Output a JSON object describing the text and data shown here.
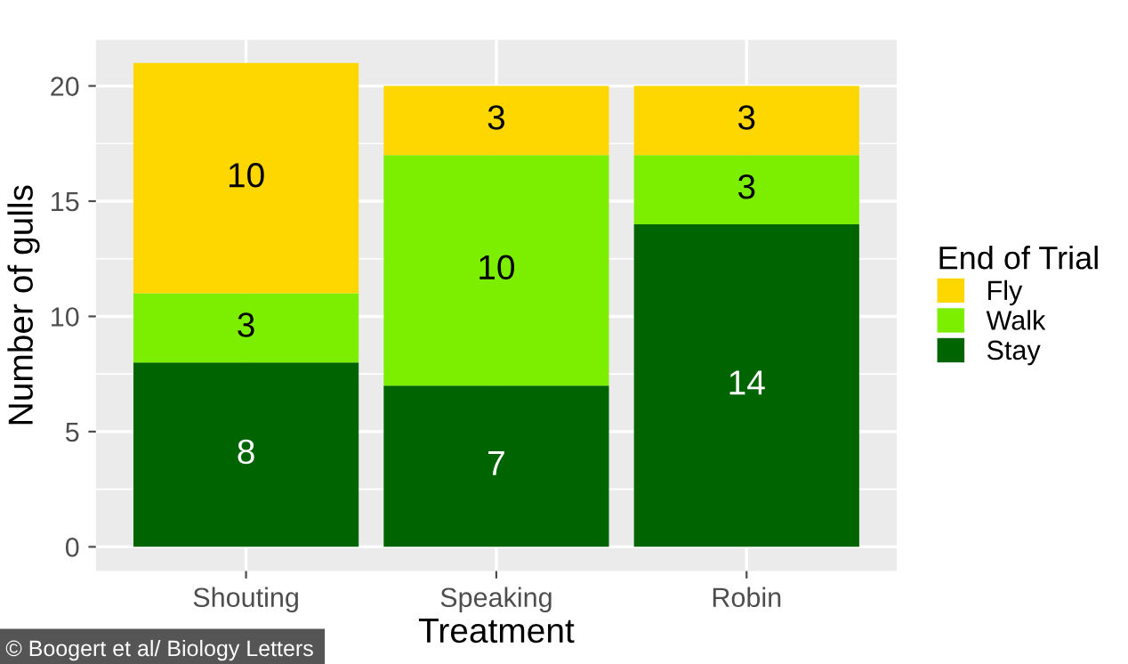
{
  "chart_data": {
    "type": "bar",
    "stacked": true,
    "xlabel": "Treatment",
    "ylabel": "Number of gulls",
    "legend_title": "End of Trial",
    "legend": "right",
    "grid": true,
    "data_labels": true,
    "categories": [
      "Shouting",
      "Speaking",
      "Robin"
    ],
    "series": [
      {
        "name": "Stay",
        "color": "#006400",
        "values": [
          8,
          7,
          14
        ]
      },
      {
        "name": "Walk",
        "color": "#7cee00",
        "values": [
          3,
          10,
          3
        ]
      },
      {
        "name": "Fly",
        "color": "#ffd700",
        "values": [
          10,
          3,
          3
        ]
      }
    ],
    "ylim": [
      -1.05,
      22
    ],
    "yticks": [
      0,
      5,
      10,
      15,
      20
    ],
    "annotations": [
      "© Boogert et al/ Biology Letters"
    ]
  }
}
